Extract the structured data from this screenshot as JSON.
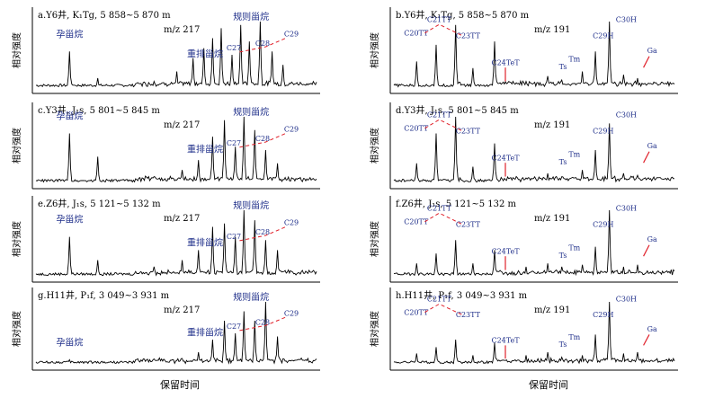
{
  "xlabel_left": "保留时间",
  "xlabel_right": "保留时间",
  "ylabel": "相对强度",
  "colors": {
    "trace": "#000000",
    "label": "#1f2f8a",
    "dash": "#e0202a",
    "axis": "#000000"
  },
  "chart_data": [
    {
      "type": "line",
      "panel": "a",
      "title": "a.Y6井, K₁Tg, 5 858~5 870 m",
      "mz": "m/z 217",
      "ylabel": "相对强度",
      "xlabel": "",
      "labels": [
        "孕甾烷",
        "重排甾烷",
        "规则甾烷",
        "C27",
        "C28",
        "C29"
      ],
      "series": [
        {
          "x": [
            0.12,
            0.22,
            0.42,
            0.5,
            0.56,
            0.6,
            0.63,
            0.66,
            0.7,
            0.73,
            0.76,
            0.8,
            0.84,
            0.88
          ],
          "values": [
            55,
            15,
            10,
            25,
            45,
            60,
            75,
            90,
            50,
            95,
            70,
            100,
            55,
            35
          ]
        }
      ]
    },
    {
      "type": "line",
      "panel": "b",
      "title": "b.Y6井, K₁Tg, 5 858~5 870 m",
      "mz": "m/z 191",
      "ylabel": "相对强度",
      "xlabel": "",
      "labels": [
        "C20TT",
        "C21TT",
        "C23TT",
        "C24TeT",
        "Ts",
        "Tm",
        "C29H",
        "C30H",
        "Ga"
      ],
      "series": [
        {
          "x": [
            0.08,
            0.15,
            0.22,
            0.28,
            0.36,
            0.47,
            0.55,
            0.6,
            0.67,
            0.72,
            0.77,
            0.82,
            0.87
          ],
          "values": [
            40,
            65,
            95,
            30,
            70,
            10,
            18,
            12,
            25,
            55,
            100,
            20,
            15
          ]
        }
      ]
    },
    {
      "type": "line",
      "panel": "c",
      "title": "c.Y3井, J₁s, 5 801~5 845 m",
      "mz": "m/z 217",
      "ylabel": "相对强度",
      "xlabel": "",
      "labels": [
        "孕甾烷",
        "重排甾烷",
        "规则甾烷",
        "C27",
        "C28",
        "C29"
      ],
      "series": [
        {
          "x": [
            0.12,
            0.22,
            0.42,
            0.52,
            0.58,
            0.63,
            0.67,
            0.71,
            0.74,
            0.78,
            0.82,
            0.86
          ],
          "values": [
            75,
            40,
            10,
            20,
            35,
            70,
            95,
            55,
            100,
            80,
            50,
            30
          ]
        }
      ]
    },
    {
      "type": "line",
      "panel": "d",
      "title": "d.Y3井, J₁s, 5 801~5 845 m",
      "mz": "m/z 191",
      "ylabel": "相对强度",
      "xlabel": "",
      "labels": [
        "C20TT",
        "C21TT",
        "C23TT",
        "C24TeT",
        "Ts",
        "Tm",
        "C29H",
        "C30H",
        "Ga"
      ],
      "series": [
        {
          "x": [
            0.08,
            0.15,
            0.22,
            0.28,
            0.36,
            0.47,
            0.55,
            0.6,
            0.67,
            0.72,
            0.77,
            0.82,
            0.87
          ],
          "values": [
            30,
            75,
            100,
            25,
            60,
            8,
            15,
            10,
            20,
            50,
            90,
            15,
            12
          ]
        }
      ]
    },
    {
      "type": "line",
      "panel": "e",
      "title": "e.Z6井, J₁s, 5 121~5 132 m",
      "mz": "m/z 217",
      "ylabel": "相对强度",
      "xlabel": "",
      "labels": [
        "孕甾烷",
        "重排甾烷",
        "规则甾烷",
        "C27",
        "C28",
        "C29"
      ],
      "series": [
        {
          "x": [
            0.12,
            0.22,
            0.42,
            0.52,
            0.58,
            0.63,
            0.67,
            0.71,
            0.74,
            0.78,
            0.82,
            0.86
          ],
          "values": [
            60,
            25,
            15,
            25,
            40,
            75,
            80,
            60,
            100,
            85,
            55,
            40
          ]
        }
      ]
    },
    {
      "type": "line",
      "panel": "f",
      "title": "f.Z6井, J₁s, 5 121~5 132 m",
      "mz": "m/z 191",
      "ylabel": "相对强度",
      "xlabel": "",
      "labels": [
        "C20TT",
        "C21TT",
        "C23TT",
        "C24TeT",
        "Ts",
        "Tm",
        "C29H",
        "C30H",
        "Ga"
      ],
      "series": [
        {
          "x": [
            0.08,
            0.15,
            0.22,
            0.28,
            0.36,
            0.47,
            0.55,
            0.6,
            0.67,
            0.72,
            0.77,
            0.82,
            0.87
          ],
          "values": [
            20,
            35,
            55,
            20,
            40,
            15,
            20,
            15,
            18,
            45,
            100,
            15,
            18
          ]
        }
      ]
    },
    {
      "type": "line",
      "panel": "g",
      "title": "g.H11井, P₁f, 3 049~3 931 m",
      "mz": "m/z 217",
      "ylabel": "相对强度",
      "xlabel": "",
      "labels": [
        "孕甾烷",
        "重排甾烷",
        "规则甾烷",
        "C27",
        "C28",
        "C29"
      ],
      "series": [
        {
          "x": [
            0.12,
            0.22,
            0.42,
            0.52,
            0.58,
            0.63,
            0.67,
            0.71,
            0.74,
            0.78,
            0.82,
            0.86
          ],
          "values": [
            8,
            5,
            5,
            10,
            20,
            40,
            70,
            50,
            85,
            70,
            100,
            45
          ]
        }
      ]
    },
    {
      "type": "line",
      "panel": "h",
      "title": "h.H11井, P₁f, 3 049~3 931 m",
      "mz": "m/z 191",
      "ylabel": "相对强度",
      "xlabel": "",
      "labels": [
        "C20TT",
        "C21TT",
        "C23TT",
        "C24TeT",
        "Ts",
        "Tm",
        "C29H",
        "C30H",
        "Ga"
      ],
      "series": [
        {
          "x": [
            0.08,
            0.15,
            0.22,
            0.28,
            0.36,
            0.47,
            0.55,
            0.6,
            0.67,
            0.72,
            0.77,
            0.82,
            0.87
          ],
          "values": [
            18,
            28,
            40,
            15,
            35,
            15,
            20,
            12,
            15,
            48,
            100,
            18,
            20
          ]
        }
      ]
    }
  ]
}
